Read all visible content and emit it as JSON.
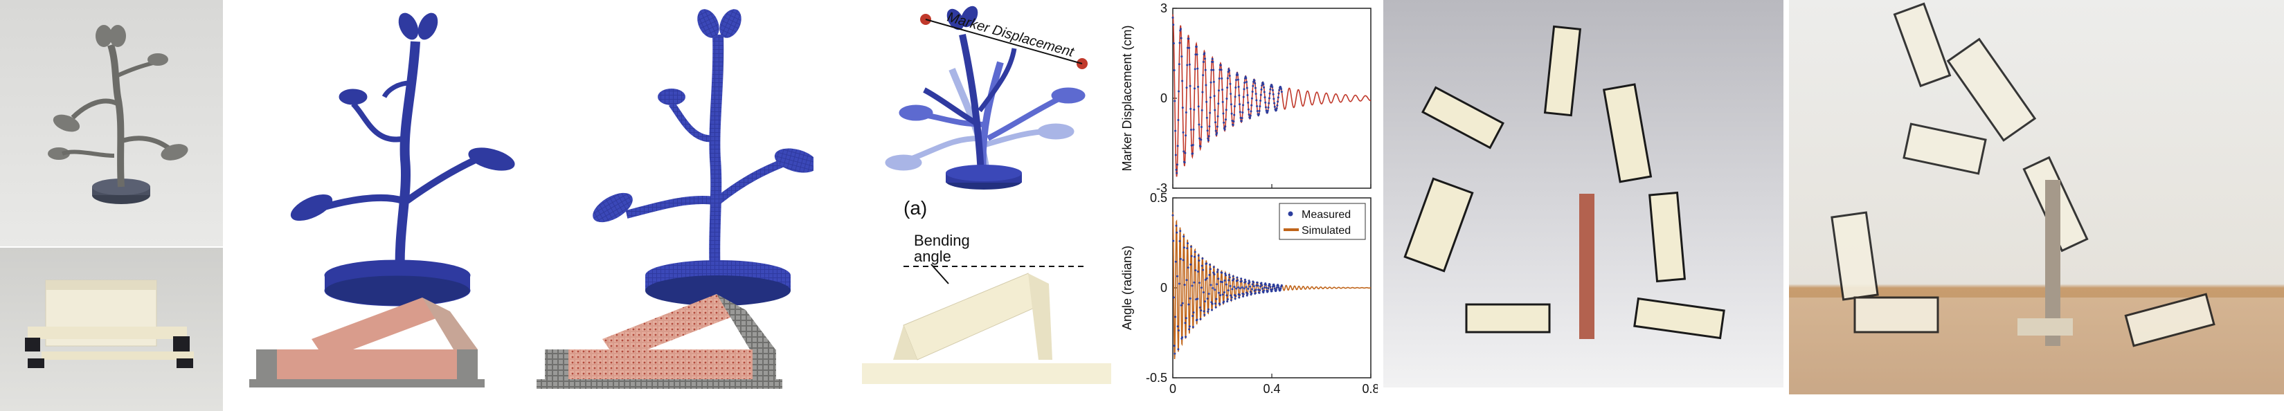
{
  "panels": {
    "strip": {
      "annotations": {
        "marker_label": "Marker Displacement",
        "panel_label": "(a)",
        "bending_label_line1": "Bending",
        "bending_label_line2": "angle"
      }
    }
  },
  "chart_data": [
    {
      "type": "line",
      "ylabel": "Marker Displacement (cm)",
      "xlim": [
        0,
        0.8
      ],
      "ylim": [
        -3,
        3
      ],
      "yticks": [
        "3",
        "0",
        "-3"
      ],
      "series": [
        {
          "color": "#c0392b",
          "marker_color": "#2c3e9e"
        }
      ]
    },
    {
      "type": "line",
      "ylabel": "Angle (radians)",
      "xlim": [
        0,
        0.8
      ],
      "ylim": [
        -0.5,
        0.5
      ],
      "yticks": [
        "0.5",
        "0",
        "-0.5"
      ],
      "xticks": [
        "0",
        "0.4",
        "0.8"
      ],
      "legend_position": "top-right",
      "series": [
        {
          "name": "Measured",
          "color": "#2c3e9e",
          "style": "points"
        },
        {
          "name": "Simulated",
          "color": "#c0651b",
          "style": "line"
        }
      ]
    }
  ]
}
